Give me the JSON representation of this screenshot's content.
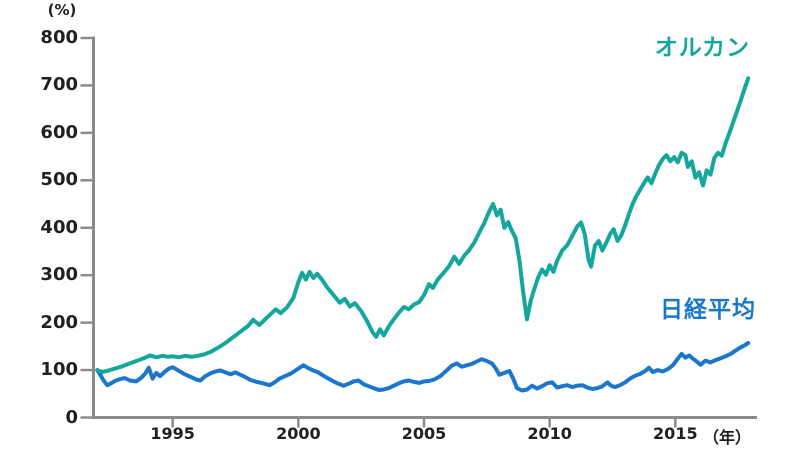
{
  "chart_data": {
    "type": "line",
    "title": "",
    "y_unit_label": "(%)",
    "x_unit_label": "（年）",
    "xlabel": "",
    "ylabel": "",
    "xlim": [
      1991.85,
      2018.25
    ],
    "ylim": [
      0,
      800
    ],
    "y_ticks": [
      0,
      100,
      200,
      300,
      400,
      500,
      600,
      700,
      800
    ],
    "x_ticks": [
      1995,
      2000,
      2005,
      2010,
      2015
    ],
    "grid": false,
    "legend_position": "inline-right-of-lines",
    "axis_color": "#8b8b8b",
    "text_color": "#231f20",
    "series": [
      {
        "name": "日経平均",
        "color": "#1a77cb",
        "points": [
          [
            1992.0,
            100
          ],
          [
            1992.1,
            92
          ],
          [
            1992.25,
            78
          ],
          [
            1992.4,
            68
          ],
          [
            1992.55,
            72
          ],
          [
            1992.7,
            77
          ],
          [
            1992.9,
            81
          ],
          [
            1993.1,
            83
          ],
          [
            1993.3,
            78
          ],
          [
            1993.55,
            76
          ],
          [
            1993.75,
            84
          ],
          [
            1993.9,
            92
          ],
          [
            1994.05,
            105
          ],
          [
            1994.2,
            82
          ],
          [
            1994.35,
            94
          ],
          [
            1994.5,
            87
          ],
          [
            1994.7,
            97
          ],
          [
            1994.85,
            103
          ],
          [
            1995.0,
            106
          ],
          [
            1995.2,
            100
          ],
          [
            1995.45,
            92
          ],
          [
            1995.7,
            86
          ],
          [
            1995.95,
            80
          ],
          [
            1996.1,
            78
          ],
          [
            1996.3,
            87
          ],
          [
            1996.5,
            93
          ],
          [
            1996.7,
            97
          ],
          [
            1996.9,
            99
          ],
          [
            1997.1,
            95
          ],
          [
            1997.3,
            91
          ],
          [
            1997.5,
            95
          ],
          [
            1997.7,
            90
          ],
          [
            1997.9,
            85
          ],
          [
            1998.1,
            79
          ],
          [
            1998.35,
            75
          ],
          [
            1998.6,
            72
          ],
          [
            1998.85,
            68
          ],
          [
            1999.05,
            74
          ],
          [
            1999.25,
            82
          ],
          [
            1999.5,
            88
          ],
          [
            1999.75,
            94
          ],
          [
            2000.0,
            103
          ],
          [
            2000.2,
            110
          ],
          [
            2000.4,
            104
          ],
          [
            2000.6,
            99
          ],
          [
            2000.8,
            95
          ],
          [
            2001.0,
            88
          ],
          [
            2001.2,
            82
          ],
          [
            2001.4,
            76
          ],
          [
            2001.6,
            71
          ],
          [
            2001.8,
            67
          ],
          [
            2002.0,
            71
          ],
          [
            2002.2,
            76
          ],
          [
            2002.4,
            78
          ],
          [
            2002.6,
            70
          ],
          [
            2002.8,
            66
          ],
          [
            2003.0,
            62
          ],
          [
            2003.2,
            58
          ],
          [
            2003.4,
            59
          ],
          [
            2003.6,
            62
          ],
          [
            2003.8,
            67
          ],
          [
            2004.0,
            72
          ],
          [
            2004.2,
            76
          ],
          [
            2004.4,
            78
          ],
          [
            2004.6,
            75
          ],
          [
            2004.8,
            73
          ],
          [
            2005.0,
            76
          ],
          [
            2005.2,
            77
          ],
          [
            2005.4,
            80
          ],
          [
            2005.65,
            87
          ],
          [
            2005.9,
            99
          ],
          [
            2006.1,
            109
          ],
          [
            2006.3,
            114
          ],
          [
            2006.5,
            107
          ],
          [
            2006.7,
            110
          ],
          [
            2006.9,
            113
          ],
          [
            2007.1,
            118
          ],
          [
            2007.3,
            123
          ],
          [
            2007.5,
            119
          ],
          [
            2007.7,
            114
          ],
          [
            2007.85,
            104
          ],
          [
            2008.0,
            90
          ],
          [
            2008.2,
            94
          ],
          [
            2008.4,
            98
          ],
          [
            2008.55,
            82
          ],
          [
            2008.7,
            62
          ],
          [
            2008.9,
            57
          ],
          [
            2009.1,
            59
          ],
          [
            2009.3,
            67
          ],
          [
            2009.5,
            61
          ],
          [
            2009.7,
            66
          ],
          [
            2009.9,
            72
          ],
          [
            2010.1,
            74
          ],
          [
            2010.3,
            63
          ],
          [
            2010.5,
            66
          ],
          [
            2010.7,
            68
          ],
          [
            2010.9,
            64
          ],
          [
            2011.1,
            67
          ],
          [
            2011.3,
            68
          ],
          [
            2011.5,
            63
          ],
          [
            2011.7,
            60
          ],
          [
            2011.9,
            62
          ],
          [
            2012.1,
            66
          ],
          [
            2012.3,
            74
          ],
          [
            2012.45,
            67
          ],
          [
            2012.6,
            64
          ],
          [
            2012.8,
            68
          ],
          [
            2013.0,
            74
          ],
          [
            2013.2,
            82
          ],
          [
            2013.4,
            88
          ],
          [
            2013.6,
            92
          ],
          [
            2013.8,
            98
          ],
          [
            2013.95,
            105
          ],
          [
            2014.1,
            96
          ],
          [
            2014.3,
            100
          ],
          [
            2014.5,
            97
          ],
          [
            2014.7,
            102
          ],
          [
            2014.9,
            110
          ],
          [
            2015.1,
            124
          ],
          [
            2015.25,
            134
          ],
          [
            2015.4,
            126
          ],
          [
            2015.55,
            131
          ],
          [
            2015.7,
            124
          ],
          [
            2015.85,
            118
          ],
          [
            2016.0,
            111
          ],
          [
            2016.2,
            120
          ],
          [
            2016.4,
            116
          ],
          [
            2016.6,
            121
          ],
          [
            2016.8,
            125
          ],
          [
            2017.0,
            129
          ],
          [
            2017.2,
            134
          ],
          [
            2017.4,
            141
          ],
          [
            2017.6,
            148
          ],
          [
            2017.75,
            152
          ],
          [
            2017.9,
            157
          ]
        ]
      },
      {
        "name": "オルカン",
        "color": "#15a79d",
        "points": [
          [
            1992.0,
            100
          ],
          [
            1992.2,
            96
          ],
          [
            1992.45,
            99
          ],
          [
            1992.7,
            103
          ],
          [
            1993.0,
            108
          ],
          [
            1993.3,
            114
          ],
          [
            1993.6,
            120
          ],
          [
            1993.9,
            126
          ],
          [
            1994.1,
            131
          ],
          [
            1994.35,
            127
          ],
          [
            1994.6,
            130
          ],
          [
            1994.8,
            128
          ],
          [
            1995.0,
            129
          ],
          [
            1995.25,
            127
          ],
          [
            1995.5,
            130
          ],
          [
            1995.75,
            128
          ],
          [
            1996.0,
            130
          ],
          [
            1996.25,
            133
          ],
          [
            1996.5,
            138
          ],
          [
            1996.8,
            147
          ],
          [
            1997.1,
            157
          ],
          [
            1997.4,
            169
          ],
          [
            1997.7,
            181
          ],
          [
            1998.0,
            193
          ],
          [
            1998.2,
            206
          ],
          [
            1998.45,
            195
          ],
          [
            1998.7,
            208
          ],
          [
            1998.9,
            218
          ],
          [
            1999.1,
            228
          ],
          [
            1999.3,
            220
          ],
          [
            1999.55,
            232
          ],
          [
            1999.8,
            252
          ],
          [
            2000.0,
            285
          ],
          [
            2000.15,
            305
          ],
          [
            2000.3,
            291
          ],
          [
            2000.45,
            307
          ],
          [
            2000.6,
            294
          ],
          [
            2000.75,
            303
          ],
          [
            2000.95,
            290
          ],
          [
            2001.15,
            274
          ],
          [
            2001.4,
            258
          ],
          [
            2001.65,
            242
          ],
          [
            2001.85,
            250
          ],
          [
            2002.05,
            234
          ],
          [
            2002.25,
            241
          ],
          [
            2002.5,
            224
          ],
          [
            2002.75,
            202
          ],
          [
            2002.95,
            180
          ],
          [
            2003.1,
            170
          ],
          [
            2003.25,
            186
          ],
          [
            2003.4,
            173
          ],
          [
            2003.6,
            192
          ],
          [
            2003.8,
            207
          ],
          [
            2004.0,
            221
          ],
          [
            2004.2,
            233
          ],
          [
            2004.4,
            228
          ],
          [
            2004.6,
            238
          ],
          [
            2004.8,
            243
          ],
          [
            2005.0,
            258
          ],
          [
            2005.2,
            281
          ],
          [
            2005.35,
            273
          ],
          [
            2005.55,
            291
          ],
          [
            2005.75,
            303
          ],
          [
            2006.0,
            319
          ],
          [
            2006.2,
            339
          ],
          [
            2006.4,
            324
          ],
          [
            2006.6,
            341
          ],
          [
            2006.8,
            353
          ],
          [
            2007.0,
            369
          ],
          [
            2007.2,
            390
          ],
          [
            2007.4,
            410
          ],
          [
            2007.6,
            435
          ],
          [
            2007.75,
            450
          ],
          [
            2007.9,
            426
          ],
          [
            2008.05,
            438
          ],
          [
            2008.2,
            400
          ],
          [
            2008.35,
            412
          ],
          [
            2008.5,
            393
          ],
          [
            2008.65,
            378
          ],
          [
            2008.8,
            330
          ],
          [
            2008.95,
            262
          ],
          [
            2009.1,
            207
          ],
          [
            2009.25,
            247
          ],
          [
            2009.4,
            273
          ],
          [
            2009.55,
            296
          ],
          [
            2009.7,
            312
          ],
          [
            2009.85,
            301
          ],
          [
            2010.0,
            321
          ],
          [
            2010.15,
            307
          ],
          [
            2010.3,
            331
          ],
          [
            2010.5,
            352
          ],
          [
            2010.7,
            363
          ],
          [
            2010.9,
            383
          ],
          [
            2011.1,
            403
          ],
          [
            2011.25,
            411
          ],
          [
            2011.4,
            386
          ],
          [
            2011.55,
            332
          ],
          [
            2011.65,
            318
          ],
          [
            2011.8,
            362
          ],
          [
            2011.95,
            372
          ],
          [
            2012.1,
            352
          ],
          [
            2012.25,
            368
          ],
          [
            2012.4,
            386
          ],
          [
            2012.55,
            397
          ],
          [
            2012.7,
            372
          ],
          [
            2012.85,
            384
          ],
          [
            2013.0,
            405
          ],
          [
            2013.15,
            428
          ],
          [
            2013.3,
            450
          ],
          [
            2013.45,
            467
          ],
          [
            2013.6,
            480
          ],
          [
            2013.75,
            494
          ],
          [
            2013.9,
            506
          ],
          [
            2014.05,
            494
          ],
          [
            2014.2,
            514
          ],
          [
            2014.35,
            532
          ],
          [
            2014.5,
            545
          ],
          [
            2014.65,
            553
          ],
          [
            2014.8,
            540
          ],
          [
            2014.95,
            549
          ],
          [
            2015.1,
            538
          ],
          [
            2015.25,
            558
          ],
          [
            2015.4,
            553
          ],
          [
            2015.5,
            528
          ],
          [
            2015.65,
            540
          ],
          [
            2015.8,
            506
          ],
          [
            2015.95,
            517
          ],
          [
            2016.1,
            489
          ],
          [
            2016.25,
            521
          ],
          [
            2016.4,
            512
          ],
          [
            2016.55,
            547
          ],
          [
            2016.7,
            558
          ],
          [
            2016.85,
            552
          ],
          [
            2017.0,
            578
          ],
          [
            2017.15,
            600
          ],
          [
            2017.3,
            622
          ],
          [
            2017.45,
            645
          ],
          [
            2017.6,
            668
          ],
          [
            2017.75,
            692
          ],
          [
            2017.9,
            715
          ]
        ]
      }
    ]
  },
  "legend": {
    "orukan_label": "オルカン",
    "nikkei_label": "日経平均"
  }
}
